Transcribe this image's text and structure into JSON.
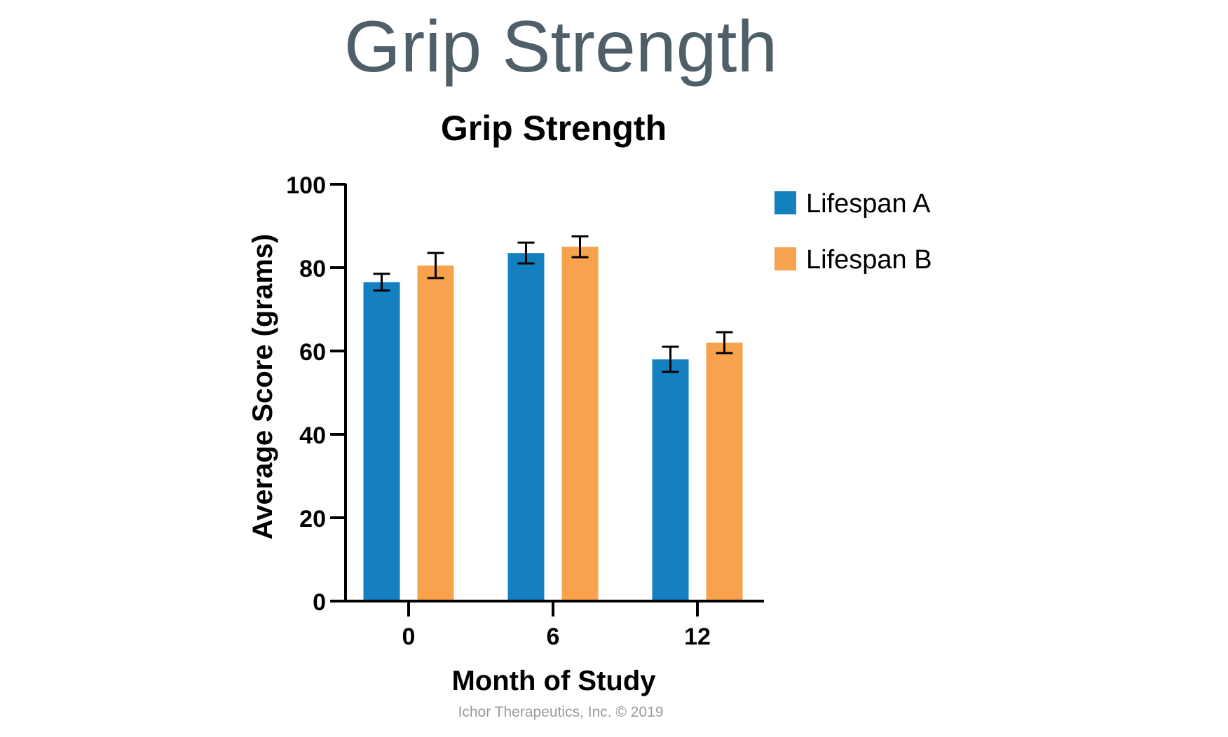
{
  "slide": {
    "title": "Grip Strength",
    "footer": "Ichor Therapeutics, Inc. © 2019"
  },
  "chart_data": {
    "type": "bar",
    "title": "Grip Strength",
    "xlabel": "Month of Study",
    "ylabel": "Average Score (grams)",
    "categories": [
      "0",
      "6",
      "12"
    ],
    "ylim": [
      0,
      100
    ],
    "yticks": [
      0,
      20,
      40,
      60,
      80,
      100
    ],
    "grid": false,
    "legend_position": "top-right",
    "series": [
      {
        "name": "Lifespan A",
        "color": "#1580c0",
        "values": [
          76.5,
          83.5,
          58
        ],
        "errors": [
          2,
          2.5,
          3
        ]
      },
      {
        "name": "Lifespan B",
        "color": "#f9a24d",
        "values": [
          80.5,
          85,
          62
        ],
        "errors": [
          3,
          2.5,
          2.5
        ]
      }
    ]
  }
}
